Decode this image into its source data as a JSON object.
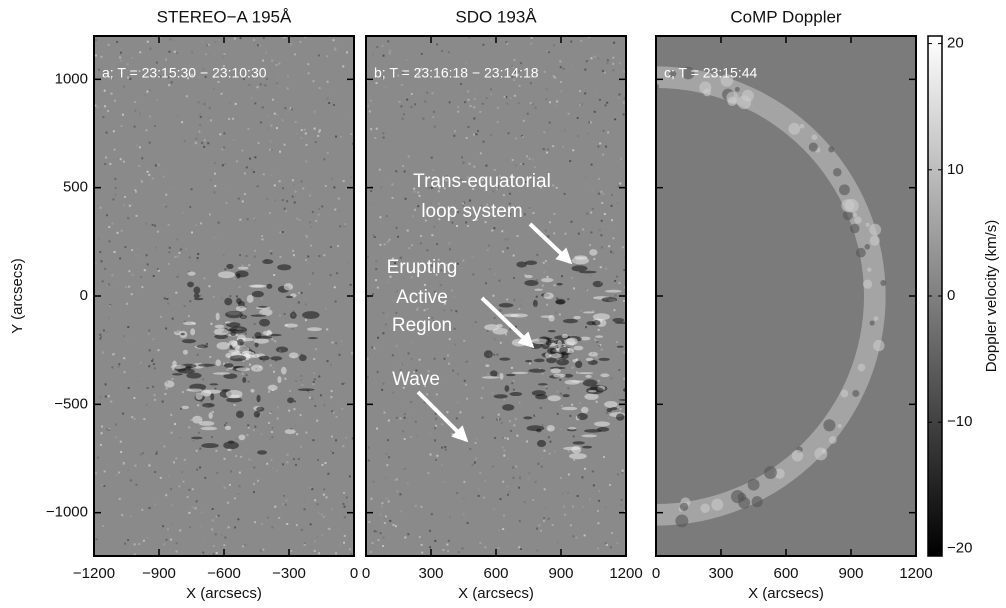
{
  "chart_data": [
    {
      "type": "image",
      "title": "STEREO−A 195Å",
      "annotation": "a; T = 23:15:30 − 23:10:30",
      "xlabel": "X (arcsecs)",
      "ylabel": "Y (arcsecs)",
      "xlim": [
        -1200,
        0
      ],
      "ylim": [
        -1200,
        1200
      ],
      "xticks": [
        {
          "value": -1200,
          "label": "−1200"
        },
        {
          "value": -900,
          "label": "−900"
        },
        {
          "value": -600,
          "label": "−600"
        },
        {
          "value": -300,
          "label": "−300"
        },
        0
      ],
      "yticks": [
        {
          "value": -1000,
          "label": "−1000"
        },
        {
          "value": -500,
          "label": "−500"
        },
        0,
        500,
        1000
      ]
    },
    {
      "type": "image",
      "title": "SDO 193Å",
      "annotation": "b; T = 23:16:18 − 23:14:18",
      "xlabel": "X (arcsecs)",
      "xlim": [
        0,
        1200
      ],
      "ylim": [
        -1200,
        1200
      ],
      "xticks": [
        0,
        300,
        600,
        900,
        1200
      ],
      "yticks": [
        -1000,
        -500,
        0,
        500,
        1000
      ],
      "callouts": [
        [
          "Trans-equatorial",
          "loop system"
        ],
        [
          "Erupting",
          "Active",
          "Region"
        ],
        [
          "Wave"
        ]
      ]
    },
    {
      "type": "image",
      "title": "CoMP Doppler",
      "annotation": "c; T = 23:15:44",
      "xlabel": "X (arcsecs)",
      "xlim": [
        0,
        1200
      ],
      "ylim": [
        -1200,
        1200
      ],
      "xticks": [
        0,
        300,
        600,
        900,
        1200
      ],
      "yticks": [
        -1000,
        -500,
        0,
        500,
        1000
      ]
    },
    {
      "type": "colorbar",
      "ylabel": "Doppler velocity (km/s)",
      "ylim": [
        -20.6,
        20.6
      ],
      "yticks": [
        20,
        10,
        0,
        {
          "value": -10,
          "label": "−10"
        },
        {
          "value": -20,
          "label": "−20"
        }
      ]
    }
  ]
}
